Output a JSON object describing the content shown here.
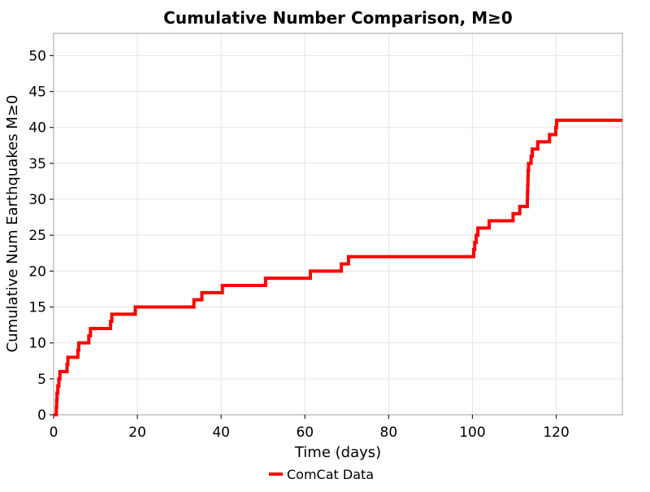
{
  "figure": {
    "background": "#ffffff"
  },
  "colors": {
    "grid": "#e5e5e5",
    "spine": "#b0b0b0",
    "tick_mark": "#262626",
    "text": "#000000",
    "series_red": "#ff0000"
  },
  "legend": {
    "label": "ComCat Data",
    "marker": "red-line"
  },
  "chart_data": {
    "type": "line",
    "step_style": "post",
    "title": "Cumulative Number Comparison, M≥0",
    "xlabel": "Time (days)",
    "ylabel": "Cumulative Num Earthquakes M≥0",
    "xlim": [
      0,
      135.8
    ],
    "ylim": [
      0,
      53.1
    ],
    "xticks": [
      0,
      20,
      40,
      60,
      80,
      100,
      120
    ],
    "yticks": [
      0,
      5,
      10,
      15,
      20,
      25,
      30,
      35,
      40,
      45,
      50
    ],
    "grid": true,
    "legend_position": "bottom-center",
    "series": [
      {
        "name": "ComCat Data",
        "color": "#ff0000",
        "line_width": 4,
        "start_point": [
          0,
          0
        ],
        "event_times": [
          0.65,
          0.72,
          0.8,
          1.0,
          1.25,
          1.5,
          3.2,
          3.4,
          5.8,
          6.0,
          8.4,
          8.8,
          13.6,
          13.9,
          19.5,
          33.5,
          35.4,
          40.3,
          50.6,
          61.3,
          68.7,
          70.4,
          100.3,
          100.55,
          100.9,
          101.3,
          104.0,
          109.7,
          111.3,
          113.1,
          113.15,
          113.2,
          113.25,
          113.3,
          113.4,
          114.0,
          114.3,
          115.6,
          118.4,
          119.9,
          120.1
        ],
        "cumulative_counts": [
          1,
          2,
          3,
          4,
          5,
          6,
          7,
          8,
          9,
          10,
          11,
          12,
          13,
          14,
          15,
          16,
          17,
          18,
          19,
          20,
          21,
          22,
          23,
          24,
          25,
          26,
          27,
          28,
          29,
          30,
          31,
          32,
          33,
          34,
          35,
          36,
          37,
          38,
          39,
          40,
          41
        ],
        "end_x": 135.8,
        "final_value": 41
      }
    ]
  }
}
